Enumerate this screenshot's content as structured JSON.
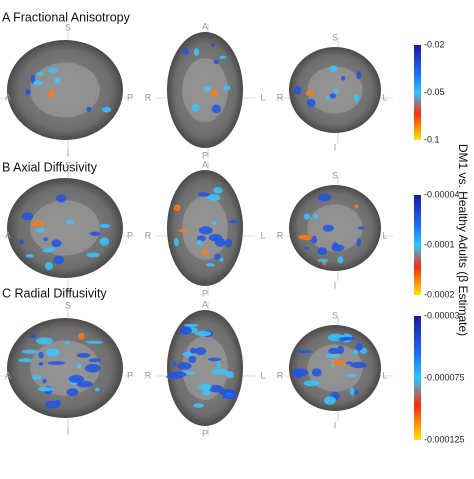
{
  "panels": [
    {
      "title": "A Fractional Anisotropy",
      "views": [
        {
          "labels": [
            "S",
            "A",
            "P",
            "I"
          ]
        },
        {
          "labels": [
            "A",
            "P",
            "R",
            "L"
          ]
        },
        {
          "labels": [
            "S",
            "R",
            "L",
            "I"
          ]
        }
      ],
      "colorbar": [
        "-0.02",
        "-0.05",
        "-0.1"
      ]
    },
    {
      "title": "B Axial Diffusivity",
      "views": [
        {
          "labels": [
            "S",
            "A",
            "P",
            "I"
          ]
        },
        {
          "labels": [
            "A",
            "P",
            "R",
            "L"
          ]
        },
        {
          "labels": [
            "S",
            "R",
            "L",
            "I"
          ]
        }
      ],
      "colorbar": [
        "-0.00004",
        "-0.0001",
        "-0.0002"
      ]
    },
    {
      "title": "C Radial Diffusivity",
      "views": [
        {
          "labels": [
            "S",
            "A",
            "P",
            "I"
          ]
        },
        {
          "labels": [
            "A",
            "P",
            "R",
            "L"
          ]
        },
        {
          "labels": [
            "S",
            "R",
            "L",
            "I"
          ]
        }
      ],
      "colorbar": [
        "-0.00003",
        "-0.000075",
        "-0.000125"
      ]
    }
  ],
  "side_label": "DM1 vs. Healthy Adults (β Estimate)"
}
